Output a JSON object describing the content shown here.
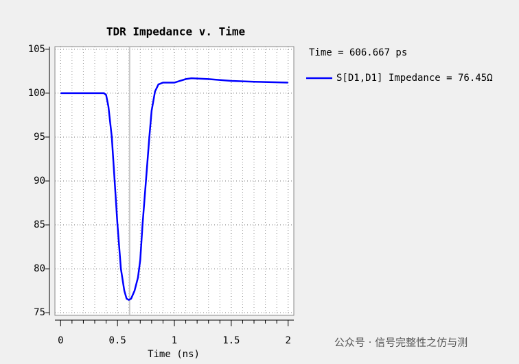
{
  "chart_data": {
    "type": "line",
    "title": "TDR Impedance v. Time",
    "x_label": "Time (ns)",
    "x": [
      0,
      0.38,
      0.4,
      0.42,
      0.45,
      0.48,
      0.5,
      0.53,
      0.56,
      0.58,
      0.6,
      0.62,
      0.65,
      0.68,
      0.7,
      0.72,
      0.75,
      0.78,
      0.8,
      0.83,
      0.86,
      0.9,
      1.0,
      1.05,
      1.1,
      1.15,
      1.3,
      1.5,
      1.7,
      2.0
    ],
    "series": [
      {
        "name": "S[D1,D1] Impedance = 76.45Ω",
        "color": "#0000ff",
        "values": [
          100,
          100,
          99.8,
          98.5,
          95,
          89,
          85,
          80,
          77.5,
          76.6,
          76.45,
          76.6,
          77.5,
          79,
          81,
          85,
          90,
          95,
          98,
          100.2,
          101,
          101.2,
          101.2,
          101.4,
          101.6,
          101.7,
          101.6,
          101.4,
          101.3,
          101.2
        ]
      }
    ],
    "xlim": [
      -0.05,
      2.05
    ],
    "ylim": [
      74.7,
      105.3
    ],
    "xticks": [
      0,
      0.5,
      1,
      1.5,
      2
    ],
    "yticks": [
      75,
      80,
      85,
      90,
      95,
      100,
      105
    ],
    "x_minor_ticks": [
      0.1,
      0.2,
      0.3,
      0.4,
      0.6,
      0.7,
      0.8,
      0.9,
      1.1,
      1.2,
      1.3,
      1.4,
      1.6,
      1.7,
      1.8,
      1.9
    ],
    "grid": true,
    "cursor_x": 0.606667,
    "cursor_label": "Time = 606.667 ps",
    "legend": "right",
    "watermark": "公众号 · 信号完整性之仿与测"
  }
}
